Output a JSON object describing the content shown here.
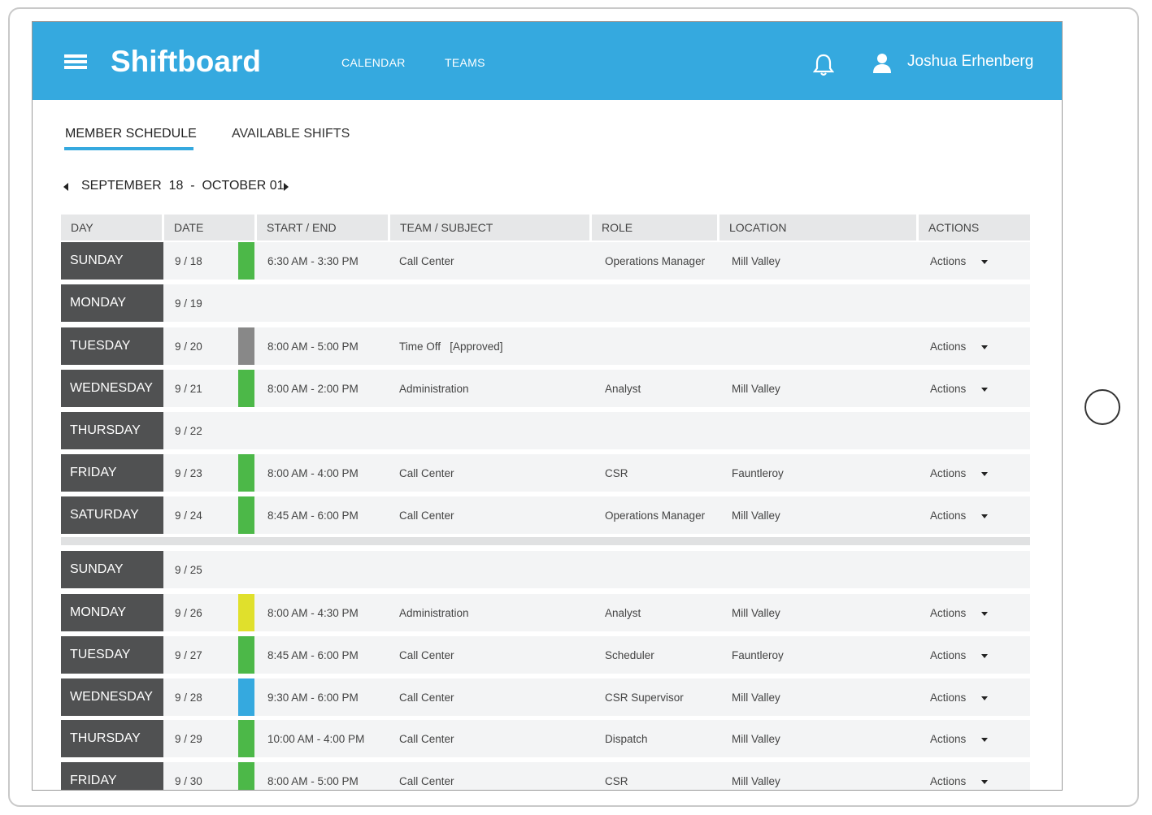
{
  "app": {
    "logo": "Shiftboard",
    "nav": [
      "CALENDAR",
      "TEAMS"
    ],
    "user_name": "Joshua Erhenberg"
  },
  "tabs": [
    {
      "label": "MEMBER SCHEDULE",
      "active": true
    },
    {
      "label": "AVAILABLE SHIFTS",
      "active": false
    }
  ],
  "date_range": "SEPTEMBER  18  -  OCTOBER 01",
  "table": {
    "headers": [
      "DAY",
      "DATE",
      "START / END",
      "TEAM / SUBJECT",
      "ROLE",
      "LOCATION",
      "ACTIONS"
    ],
    "rows": [
      {
        "day": "SUNDAY",
        "date": "9 / 18",
        "color": "#4cb848",
        "time": "6:30 AM - 3:30 PM",
        "team": "Call Center",
        "role": "Operations Manager",
        "location": "Mill Valley",
        "action": "Actions"
      },
      {
        "day": "MONDAY",
        "date": "9 / 19",
        "color": "",
        "time": "",
        "team": "",
        "role": "",
        "location": "",
        "action": ""
      },
      {
        "day": "TUESDAY",
        "date": "9 / 20",
        "color": "#888888",
        "time": "8:00 AM - 5:00 PM",
        "team": "Time Off   [Approved]",
        "role": "",
        "location": "",
        "action": "Actions"
      },
      {
        "day": "WEDNESDAY",
        "date": "9 / 21",
        "color": "#4cb848",
        "time": "8:00 AM - 2:00 PM",
        "team": "Administration",
        "role": "Analyst",
        "location": "Mill Valley",
        "action": "Actions"
      },
      {
        "day": "THURSDAY",
        "date": "9 / 22",
        "color": "",
        "time": "",
        "team": "",
        "role": "",
        "location": "",
        "action": ""
      },
      {
        "day": "FRIDAY",
        "date": "9 / 23",
        "color": "#4cb848",
        "time": "8:00 AM - 4:00 PM",
        "team": "Call Center",
        "role": "CSR",
        "location": "Fauntleroy",
        "action": "Actions"
      },
      {
        "day": "SATURDAY",
        "date": "9 / 24",
        "color": "#4cb848",
        "time": "8:45 AM - 6:00 PM",
        "team": "Call Center",
        "role": "Operations Manager",
        "location": "Mill Valley",
        "action": "Actions"
      },
      {
        "day": "SUNDAY",
        "date": "9 / 25",
        "color": "",
        "time": "",
        "team": "",
        "role": "",
        "location": "",
        "action": ""
      },
      {
        "day": "MONDAY",
        "date": "9 / 26",
        "color": "#e0e02c",
        "time": "8:00 AM - 4:30 PM",
        "team": "Administration",
        "role": "Analyst",
        "location": "Mill Valley",
        "action": "Actions"
      },
      {
        "day": "TUESDAY",
        "date": "9 / 27",
        "color": "#4cb848",
        "time": "8:45 AM - 6:00 PM",
        "team": "Call Center",
        "role": "Scheduler",
        "location": "Fauntleroy",
        "action": "Actions"
      },
      {
        "day": "WEDNESDAY",
        "date": "9 / 28",
        "color": "#35a9df",
        "time": "9:30 AM - 6:00 PM",
        "team": "Call Center",
        "role": "CSR Supervisor",
        "location": "Mill Valley",
        "action": "Actions"
      },
      {
        "day": "THURSDAY",
        "date": "9 / 29",
        "color": "#4cb848",
        "time": "10:00 AM - 4:00 PM",
        "team": "Call Center",
        "role": "Dispatch",
        "location": "Mill Valley",
        "action": "Actions"
      },
      {
        "day": "FRIDAY",
        "date": "9 / 30",
        "color": "#4cb848",
        "time": "8:00 AM - 5:00 PM",
        "team": "Call Center",
        "role": "CSR",
        "location": "Mill Valley",
        "action": "Actions"
      }
    ]
  },
  "colors": {
    "header_bg": "#35a9df",
    "day_cell_bg": "#505152",
    "row_bg": "#f3f4f5"
  },
  "icons": [
    "menu-icon",
    "bell-icon",
    "user-icon",
    "chevron-left-icon",
    "chevron-right-icon",
    "caret-down-icon"
  ]
}
